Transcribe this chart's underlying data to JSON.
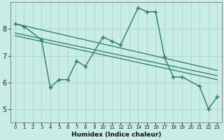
{
  "xlabel": "Humidex (Indice chaleur)",
  "bg_color": "#c8ece6",
  "grid_color": "#b0d8d0",
  "line_color": "#2d7a6a",
  "xlim": [
    -0.5,
    23.5
  ],
  "ylim": [
    4.5,
    9.0
  ],
  "yticks": [
    5,
    6,
    7,
    8
  ],
  "xticks": [
    0,
    1,
    2,
    3,
    4,
    5,
    6,
    7,
    8,
    9,
    10,
    11,
    12,
    13,
    14,
    15,
    16,
    17,
    18,
    19,
    20,
    21,
    22,
    23
  ],
  "x_labels": [
    "0",
    "1",
    "2",
    "3",
    "4",
    "5",
    "6",
    "7",
    "8",
    "9",
    "10",
    "11",
    "12",
    "13",
    "14",
    "15",
    "16",
    "17",
    "18",
    "19",
    "20",
    "21",
    "22",
    "23"
  ],
  "main_x": [
    0,
    1,
    3,
    4,
    5,
    6,
    7,
    8,
    10,
    11,
    12,
    14,
    15,
    16,
    17,
    18,
    19,
    21,
    22,
    23
  ],
  "main_y": [
    8.2,
    8.1,
    7.6,
    5.8,
    6.1,
    6.1,
    6.8,
    6.6,
    7.7,
    7.55,
    7.4,
    8.8,
    8.65,
    8.65,
    6.95,
    6.2,
    6.2,
    5.85,
    5.0,
    5.45
  ],
  "trend1_x": [
    0,
    23
  ],
  "trend1_y": [
    8.2,
    6.45
  ],
  "trend2_x": [
    0,
    23
  ],
  "trend2_y": [
    7.85,
    6.25
  ],
  "trend3_x": [
    0,
    23
  ],
  "trend3_y": [
    7.75,
    6.1
  ]
}
